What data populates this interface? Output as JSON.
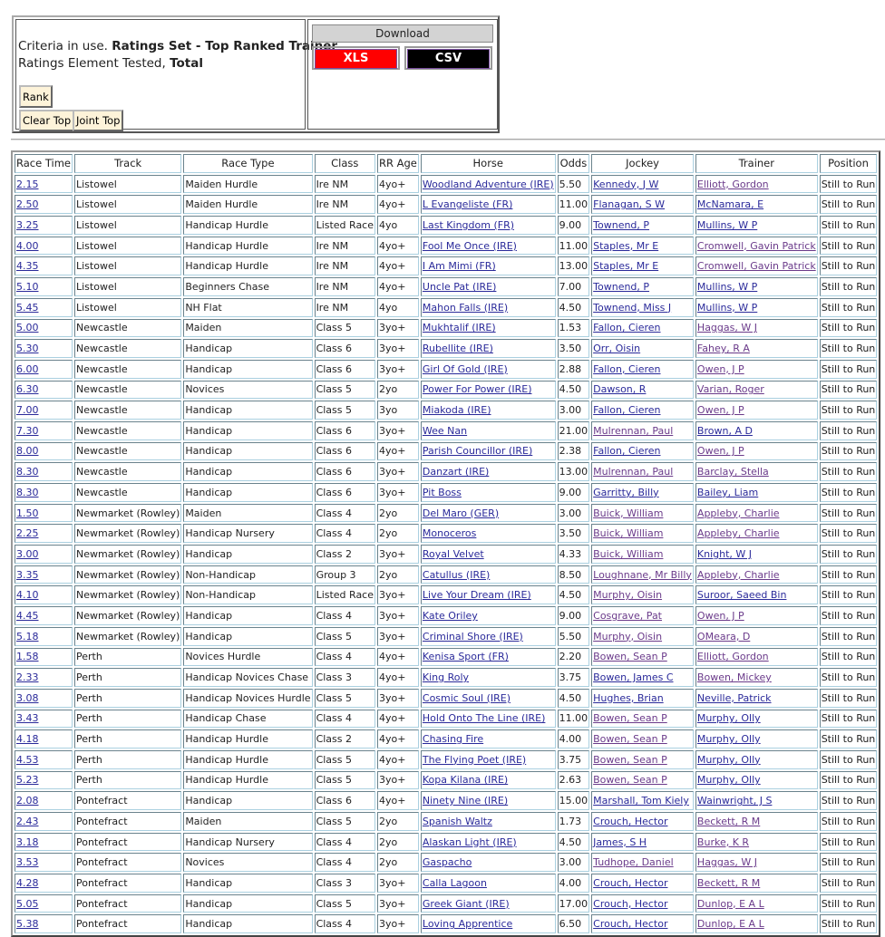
{
  "criteria": {
    "prefix": "Criteria in use.",
    "ratings_set": "Ratings Set - Top Ranked Trainer",
    "element_prefix": "Ratings Element Tested,",
    "element": "Total"
  },
  "buttons": {
    "rank": "Rank",
    "clear_top": "Clear Top",
    "joint_top": "Joint Top"
  },
  "download": {
    "label": "Download",
    "xls": "XLS",
    "csv": "CSV",
    "xls_color": "#ff0000",
    "csv_color": "#000000"
  },
  "table": {
    "headers": [
      "Race Time",
      "Track",
      "Race Type",
      "Class",
      "RR Age",
      "Horse",
      "Odds",
      "Jockey",
      "Trainer",
      "Position"
    ],
    "rows": [
      [
        "2.15",
        "Listowel",
        "Maiden Hurdle",
        "Ire NM",
        "4yo+",
        "Woodland Adventure (IRE)",
        "5.50",
        "Kennedy, J W",
        "Elliott, Gordon",
        "Still to Run"
      ],
      [
        "2.50",
        "Listowel",
        "Maiden Hurdle",
        "Ire NM",
        "4yo+",
        "L Evangeliste (FR)",
        "11.00",
        "Flanagan, S W",
        "McNamara, E",
        "Still to Run"
      ],
      [
        "3.25",
        "Listowel",
        "Handicap Hurdle",
        "Listed Race",
        "4yo",
        "Last Kingdom (FR)",
        "9.00",
        "Townend, P",
        "Mullins, W P",
        "Still to Run"
      ],
      [
        "4.00",
        "Listowel",
        "Handicap Hurdle",
        "Ire NM",
        "4yo+",
        "Fool Me Once (IRE)",
        "11.00",
        "Staples, Mr E",
        "Cromwell, Gavin Patrick",
        "Still to Run"
      ],
      [
        "4.35",
        "Listowel",
        "Handicap Hurdle",
        "Ire NM",
        "4yo+",
        "I Am Mimi (FR)",
        "13.00",
        "Staples, Mr E",
        "Cromwell, Gavin Patrick",
        "Still to Run"
      ],
      [
        "5.10",
        "Listowel",
        "Beginners Chase",
        "Ire NM",
        "4yo+",
        "Uncle Pat (IRE)",
        "7.00",
        "Townend, P",
        "Mullins, W P",
        "Still to Run"
      ],
      [
        "5.45",
        "Listowel",
        "NH Flat",
        "Ire NM",
        "4yo",
        "Mahon Falls (IRE)",
        "4.50",
        "Townend, Miss J",
        "Mullins, W P",
        "Still to Run"
      ],
      [
        "5.00",
        "Newcastle",
        "Maiden",
        "Class 5",
        "3yo+",
        "Mukhtalif (IRE)",
        "1.53",
        "Fallon, Cieren",
        "Haggas, W J",
        "Still to Run"
      ],
      [
        "5.30",
        "Newcastle",
        "Handicap",
        "Class 6",
        "3yo+",
        "Rubellite (IRE)",
        "3.50",
        "Orr, Oisin",
        "Fahey, R A",
        "Still to Run"
      ],
      [
        "6.00",
        "Newcastle",
        "Handicap",
        "Class 6",
        "3yo+",
        "Girl Of Gold (IRE)",
        "2.88",
        "Fallon, Cieren",
        "Owen, J P",
        "Still to Run"
      ],
      [
        "6.30",
        "Newcastle",
        "Novices",
        "Class 5",
        "2yo",
        "Power For Power (IRE)",
        "4.50",
        "Dawson, R",
        "Varian, Roger",
        "Still to Run"
      ],
      [
        "7.00",
        "Newcastle",
        "Handicap",
        "Class 5",
        "3yo",
        "Miakoda (IRE)",
        "3.00",
        "Fallon, Cieren",
        "Owen, J P",
        "Still to Run"
      ],
      [
        "7.30",
        "Newcastle",
        "Handicap",
        "Class 6",
        "3yo+",
        "Wee Nan",
        "21.00",
        "Mulrennan, Paul",
        "Brown, A D",
        "Still to Run"
      ],
      [
        "8.00",
        "Newcastle",
        "Handicap",
        "Class 6",
        "4yo+",
        "Parish Councillor (IRE)",
        "2.38",
        "Fallon, Cieren",
        "Owen, J P",
        "Still to Run"
      ],
      [
        "8.30",
        "Newcastle",
        "Handicap",
        "Class 6",
        "3yo+",
        "Danzart (IRE)",
        "13.00",
        "Mulrennan, Paul",
        "Barclay, Stella",
        "Still to Run"
      ],
      [
        "8.30",
        "Newcastle",
        "Handicap",
        "Class 6",
        "3yo+",
        "Pit Boss",
        "9.00",
        "Garritty, Billy",
        "Bailey, Liam",
        "Still to Run"
      ],
      [
        "1.50",
        "Newmarket (Rowley)",
        "Maiden",
        "Class 4",
        "2yo",
        "Del Maro (GER)",
        "3.00",
        "Buick, William",
        "Appleby, Charlie",
        "Still to Run"
      ],
      [
        "2.25",
        "Newmarket (Rowley)",
        "Handicap Nursery",
        "Class 4",
        "2yo",
        "Monoceros",
        "3.50",
        "Buick, William",
        "Appleby, Charlie",
        "Still to Run"
      ],
      [
        "3.00",
        "Newmarket (Rowley)",
        "Handicap",
        "Class 2",
        "3yo+",
        "Royal Velvet",
        "4.33",
        "Buick, William",
        "Knight, W J",
        "Still to Run"
      ],
      [
        "3.35",
        "Newmarket (Rowley)",
        "Non-Handicap",
        "Group 3",
        "2yo",
        "Catullus (IRE)",
        "8.50",
        "Loughnane, Mr Billy",
        "Appleby, Charlie",
        "Still to Run"
      ],
      [
        "4.10",
        "Newmarket (Rowley)",
        "Non-Handicap",
        "Listed Race",
        "3yo+",
        "Live Your Dream (IRE)",
        "4.50",
        "Murphy, Oisin",
        "Suroor, Saeed Bin",
        "Still to Run"
      ],
      [
        "4.45",
        "Newmarket (Rowley)",
        "Handicap",
        "Class 4",
        "3yo+",
        "Kate Oriley",
        "9.00",
        "Cosgrave, Pat",
        "Owen, J P",
        "Still to Run"
      ],
      [
        "5.18",
        "Newmarket (Rowley)",
        "Handicap",
        "Class 5",
        "3yo+",
        "Criminal Shore (IRE)",
        "5.50",
        "Murphy, Oisin",
        "OMeara, D",
        "Still to Run"
      ],
      [
        "1.58",
        "Perth",
        "Novices Hurdle",
        "Class 4",
        "4yo+",
        "Kenisa Sport (FR)",
        "2.20",
        "Bowen, Sean P",
        "Elliott, Gordon",
        "Still to Run"
      ],
      [
        "2.33",
        "Perth",
        "Handicap Novices Chase",
        "Class 3",
        "4yo+",
        "King Roly",
        "3.75",
        "Bowen, James C",
        "Bowen, Mickey",
        "Still to Run"
      ],
      [
        "3.08",
        "Perth",
        "Handicap Novices Hurdle",
        "Class 5",
        "3yo+",
        "Cosmic Soul (IRE)",
        "4.50",
        "Hughes, Brian",
        "Neville, Patrick",
        "Still to Run"
      ],
      [
        "3.43",
        "Perth",
        "Handicap Chase",
        "Class 4",
        "4yo+",
        "Hold Onto The Line (IRE)",
        "11.00",
        "Bowen, Sean P",
        "Murphy, Olly",
        "Still to Run"
      ],
      [
        "4.18",
        "Perth",
        "Handicap Hurdle",
        "Class 2",
        "4yo+",
        "Chasing Fire",
        "4.00",
        "Bowen, Sean P",
        "Murphy, Olly",
        "Still to Run"
      ],
      [
        "4.53",
        "Perth",
        "Handicap Hurdle",
        "Class 5",
        "4yo+",
        "The Flying Poet (IRE)",
        "3.75",
        "Bowen, Sean P",
        "Murphy, Olly",
        "Still to Run"
      ],
      [
        "5.23",
        "Perth",
        "Handicap Hurdle",
        "Class 5",
        "3yo+",
        "Kopa Kilana (IRE)",
        "2.63",
        "Bowen, Sean P",
        "Murphy, Olly",
        "Still to Run"
      ],
      [
        "2.08",
        "Pontefract",
        "Handicap",
        "Class 6",
        "4yo+",
        "Ninety Nine (IRE)",
        "15.00",
        "Marshall, Tom Kiely",
        "Wainwright, J S",
        "Still to Run"
      ],
      [
        "2.43",
        "Pontefract",
        "Maiden",
        "Class 5",
        "2yo",
        "Spanish Waltz",
        "1.73",
        "Crouch, Hector",
        "Beckett, R M",
        "Still to Run"
      ],
      [
        "3.18",
        "Pontefract",
        "Handicap Nursery",
        "Class 4",
        "2yo",
        "Alaskan Light (IRE)",
        "4.50",
        "James, S H",
        "Burke, K R",
        "Still to Run"
      ],
      [
        "3.53",
        "Pontefract",
        "Novices",
        "Class 4",
        "2yo",
        "Gaspacho",
        "3.00",
        "Tudhope, Daniel",
        "Haggas, W J",
        "Still to Run"
      ],
      [
        "4.28",
        "Pontefract",
        "Handicap",
        "Class 3",
        "3yo+",
        "Calla Lagoon",
        "4.00",
        "Crouch, Hector",
        "Beckett, R M",
        "Still to Run"
      ],
      [
        "5.05",
        "Pontefract",
        "Handicap",
        "Class 5",
        "3yo+",
        "Greek Giant (IRE)",
        "17.00",
        "Crouch, Hector",
        "Dunlop, E A L",
        "Still to Run"
      ],
      [
        "5.38",
        "Pontefract",
        "Handicap",
        "Class 4",
        "3yo+",
        "Loving Apprentice",
        "6.50",
        "Crouch, Hector",
        "Dunlop, E A L",
        "Still to Run"
      ]
    ],
    "visited_jockeys": [
      "Mulrennan, Paul",
      "Buick, William",
      "Loughnane, Mr Billy",
      "Murphy, Oisin",
      "Cosgrave, Pat",
      "Bowen, Sean P",
      "Tudhope, Daniel"
    ],
    "visited_trainers": [
      "Elliott, Gordon",
      "Cromwell, Gavin Patrick",
      "Haggas, W J",
      "Fahey, R A",
      "Owen, J P",
      "Varian, Roger",
      "Barclay, Stella",
      "Appleby, Charlie",
      "OMeara, D",
      "Bowen, Mickey",
      "Beckett, R M",
      "Burke, K R",
      "Dunlop, E A L"
    ],
    "link_colors": {
      "unvisited": "#2a2a9a",
      "visited": "#6a3a8a"
    }
  }
}
